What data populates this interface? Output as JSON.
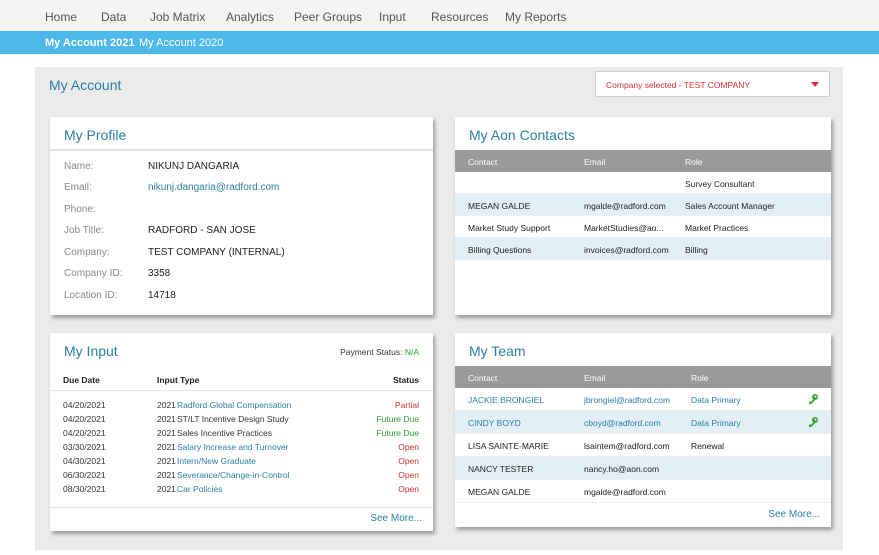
{
  "topnav": {
    "items": [
      {
        "label": "Home"
      },
      {
        "label": "Data"
      },
      {
        "label": "Job Matrix"
      },
      {
        "label": "Analytics"
      },
      {
        "label": "Peer Groups"
      },
      {
        "label": "Input"
      },
      {
        "label": "Resources"
      },
      {
        "label": "My Reports"
      }
    ]
  },
  "subnav": {
    "items": [
      {
        "label": "My Account 2021",
        "active": true
      },
      {
        "label": "My Account 2020",
        "active": false
      }
    ]
  },
  "page": {
    "title": "My Account",
    "company_select": "Company selected - TEST COMPANY"
  },
  "profile": {
    "title": "My Profile",
    "rows": [
      {
        "label": "Name:",
        "value": "NIKUNJ DANGARIA"
      },
      {
        "label": "Email:",
        "value": "nikunj.dangaria@radford.com"
      },
      {
        "label": "Phone:",
        "value": ""
      },
      {
        "label": "Job Title:",
        "value": "RADFORD - SAN JOSE"
      },
      {
        "label": "Company:",
        "value": "TEST COMPANY (INTERNAL)"
      },
      {
        "label": "Company ID:",
        "value": "3358"
      },
      {
        "label": "Location ID:",
        "value": "14718"
      }
    ]
  },
  "contacts": {
    "title": "My Aon Contacts",
    "headers": {
      "contact": "Contact",
      "email": "Email",
      "role": "Role"
    },
    "rows": [
      {
        "contact": "",
        "email": "",
        "role": "Survey Consultant"
      },
      {
        "contact": "MEGAN GALDE",
        "email": "mgalde@radford.com",
        "role": "Sales Account Manager"
      },
      {
        "contact": "Market Study Support",
        "email": "MarketStudies@ao...",
        "role": "Market Practices"
      },
      {
        "contact": "Billing Questions",
        "email": "invoices@radford.com",
        "role": "Billing"
      }
    ]
  },
  "input": {
    "title": "My Input",
    "payment_label": "Payment Status:",
    "payment_value": "N/A",
    "headers": {
      "due": "Due Date",
      "type": "Input Type",
      "status": "Status"
    },
    "rows": [
      {
        "date": "04/20/2021",
        "year": "2021",
        "name": "Radford Global Compensation",
        "status": "Partial"
      },
      {
        "date": "04/20/2021",
        "year": "2021",
        "name": "ST/LT Incentive Design Study",
        "status": "Future Due"
      },
      {
        "date": "04/20/2021",
        "year": "2021",
        "name": "Sales Incentive Practices",
        "status": "Future Due"
      },
      {
        "date": "03/30/2021",
        "year": "2021",
        "name": "Salary Increase and Turnover",
        "status": "Open"
      },
      {
        "date": "04/30/2021",
        "year": "2021",
        "name": "Intern/New Graduate",
        "status": "Open"
      },
      {
        "date": "06/30/2021",
        "year": "2021",
        "name": "Severance/Change-in-Control",
        "status": "Open"
      },
      {
        "date": "08/30/2021",
        "year": "2021",
        "name": "Car Policies",
        "status": "Open"
      }
    ],
    "see_more": "See More..."
  },
  "team": {
    "title": "My Team",
    "headers": {
      "contact": "Contact",
      "email": "Email",
      "role": "Role"
    },
    "rows": [
      {
        "contact": "JACKIE BRONGIEL",
        "email": "jbrongiel@radford.com",
        "role": "Data Primary",
        "key_icon": true
      },
      {
        "contact": "CINDY BOYD",
        "email": "cboyd@radford.com",
        "role": "Data Primary",
        "key_icon": true
      },
      {
        "contact": "LISA SAINTE-MARIE",
        "email": "lsaintem@radford.com",
        "role": "Renewal",
        "key_icon": false
      },
      {
        "contact": "NANCY TESTER",
        "email": "nancy.ho@aon.com",
        "role": "",
        "key_icon": false
      },
      {
        "contact": "MEGAN GALDE",
        "email": "mgalde@radford.com",
        "role": "",
        "key_icon": false
      }
    ],
    "see_more": "See More..."
  },
  "colors": {
    "accent": "#2a7fa6",
    "subnav": "#4db8ea",
    "open": "#d32f2f",
    "future_due": "#2e9e2e",
    "table_header": "#999999",
    "row_alt": "#e2eff7"
  }
}
